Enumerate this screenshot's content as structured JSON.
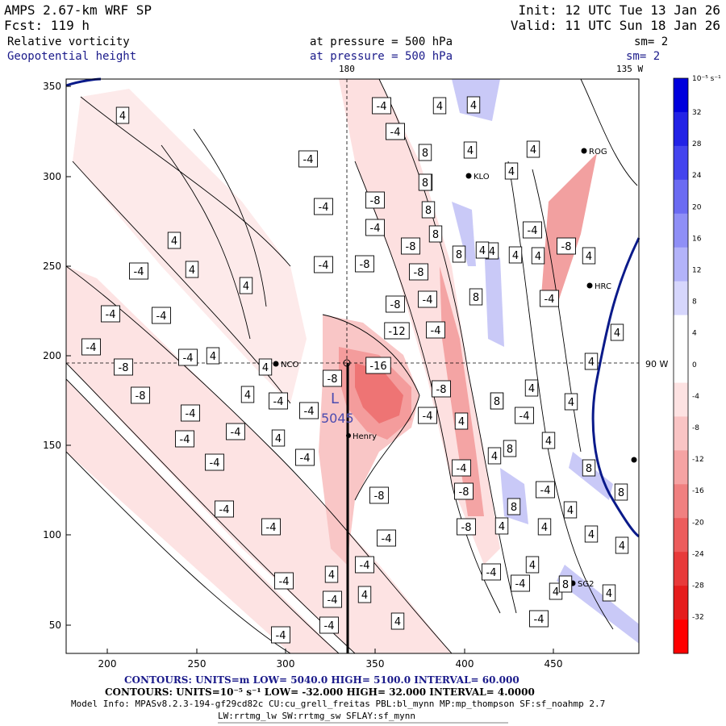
{
  "header": {
    "model": "AMPS 2.67-km WRF SP",
    "forecast": "Fcst:  119 h",
    "init": "Init: 12 UTC Tue 13 Jan 26",
    "valid": "Valid: 11 UTC Sun 18 Jan 26",
    "field1": {
      "name": "Relative vorticity",
      "pressure": "at pressure =  500 hPa",
      "sm": "sm= 2"
    },
    "field2": {
      "name": "Geopotential height",
      "pressure": "at pressure =  500 hPa",
      "sm": "sm= 2"
    }
  },
  "map": {
    "top_labels": [
      "180",
      "135 W"
    ],
    "right_label": "90 W",
    "x_ticks": [
      "200",
      "250",
      "300",
      "350",
      "400",
      "450"
    ],
    "y_ticks": [
      "350",
      "300",
      "250",
      "200",
      "150",
      "100",
      "50"
    ],
    "low_center": {
      "letter": "L",
      "value": "5045"
    },
    "stations": [
      "NCO",
      "Henry",
      "ROG",
      "KLO",
      "HRC",
      "SG2"
    ],
    "contour_labels": [
      "4",
      "-4",
      "8",
      "-8",
      "-12",
      "-16"
    ]
  },
  "colorbar": {
    "unit_label": "10⁻⁵ s⁻¹",
    "ticks": [
      "32",
      "28",
      "24",
      "20",
      "16",
      "12",
      "8",
      "4",
      "0",
      "-4",
      "-8",
      "-12",
      "-16",
      "-20",
      "-24",
      "-28",
      "-32"
    ],
    "colors": [
      "#0000dd",
      "#2222e6",
      "#4444ee",
      "#6b6bf2",
      "#8f8ff6",
      "#b3b3f9",
      "#d6d6fc",
      "#ffffff",
      "#ffffff",
      "#fde2e2",
      "#f9c4c4",
      "#f5a3a3",
      "#f08080",
      "#ec5c5c",
      "#e83a3a",
      "#e51c1c",
      "#ff0000"
    ]
  },
  "footer": {
    "line1": "CONTOURS:  UNITS=m  LOW=  5040.0      HIGH=  5100.0      INTERVAL=   60.000",
    "line2": "CONTOURS:  UNITS=10⁻⁵ s⁻¹  LOW= -32.000      HIGH=  32.000      INTERVAL=   4.0000",
    "line3": "Model Info: MPASv8.2.3-194-gf29cd82c CU:cu_grell_freitas PBL:bl_mynn MP:mp_thompson SF:sf_noahmp 2.7",
    "line4": "LW:rrtmg_lw SW:rrtmg_sw SFLAY:sf_mynn"
  },
  "colors": {
    "accent_blue": "#1a1a8a",
    "contour_blue": "#001a80",
    "height_line": "#0a1a8a"
  }
}
